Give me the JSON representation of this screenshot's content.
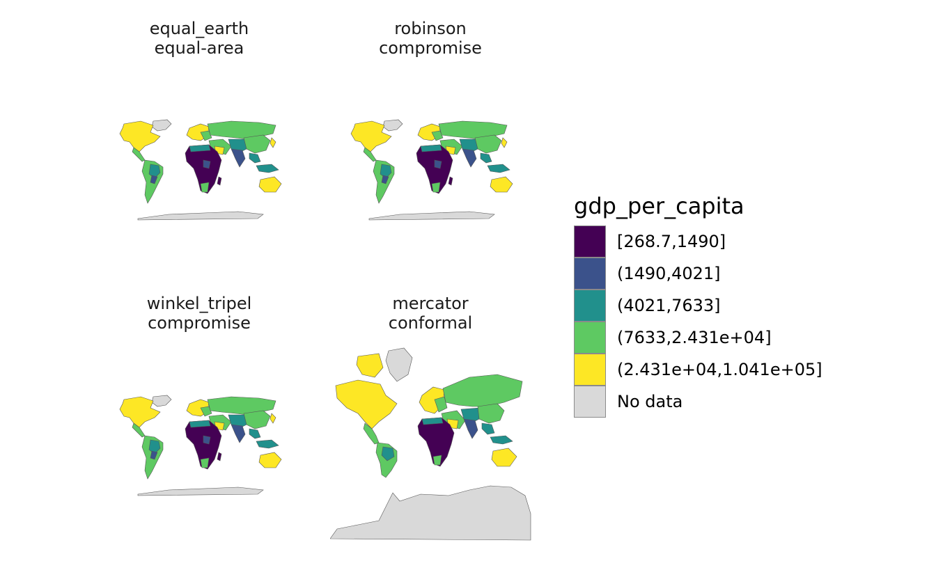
{
  "panels": [
    {
      "name": "equal_earth",
      "kind": "equal-area"
    },
    {
      "name": "robinson",
      "kind": "compromise"
    },
    {
      "name": "winkel_tripel",
      "kind": "compromise"
    },
    {
      "name": "mercator",
      "kind": "conformal"
    }
  ],
  "legend": {
    "title": "gdp_per_capita",
    "items": [
      {
        "label": "[268.7,1490]",
        "color": "#440154"
      },
      {
        "label": "(1490,4021]",
        "color": "#3b528b"
      },
      {
        "label": "(4021,7633]",
        "color": "#21908c"
      },
      {
        "label": "(7633,2.431e+04]",
        "color": "#5ec962"
      },
      {
        "label": "(2.431e+04,1.041e+05]",
        "color": "#fde725"
      },
      {
        "label": "No data",
        "color": "#d9d9d9"
      }
    ]
  }
}
